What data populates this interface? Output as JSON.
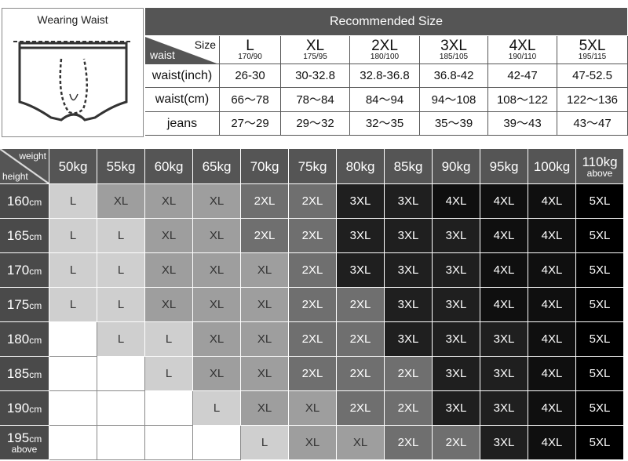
{
  "wearing_waist": "Wearing Waist",
  "recommended": {
    "title": "Recommended Size",
    "size_label": "Size",
    "waist_label": "waist",
    "sizes": [
      {
        "name": "L",
        "sub": "170/90"
      },
      {
        "name": "XL",
        "sub": "175/95"
      },
      {
        "name": "2XL",
        "sub": "180/100"
      },
      {
        "name": "3XL",
        "sub": "185/105"
      },
      {
        "name": "4XL",
        "sub": "190/110"
      },
      {
        "name": "5XL",
        "sub": "195/115"
      }
    ],
    "rows": [
      {
        "label": "waist(inch)",
        "values": [
          "26-30",
          "30-32.8",
          "32.8-36.8",
          "36.8-42",
          "42-47",
          "47-52.5"
        ]
      },
      {
        "label": "waist(cm)",
        "values": [
          "66～78",
          "78～84",
          "84～94",
          "94～108",
          "108～122",
          "122～136"
        ]
      },
      {
        "label": "jeans",
        "values": [
          "27～29",
          "29～32",
          "32～35",
          "35～39",
          "39～43",
          "43～47"
        ]
      }
    ]
  },
  "grid": {
    "weight_label": "weight",
    "height_label": "height",
    "columns": [
      {
        "label": "50kg"
      },
      {
        "label": "55kg"
      },
      {
        "label": "60kg"
      },
      {
        "label": "65kg"
      },
      {
        "label": "70kg"
      },
      {
        "label": "75kg"
      },
      {
        "label": "80kg"
      },
      {
        "label": "85kg"
      },
      {
        "label": "90kg"
      },
      {
        "label": "95kg"
      },
      {
        "label": "100kg"
      },
      {
        "label": "110kg",
        "note": "above"
      }
    ],
    "rows": [
      {
        "height": "160",
        "unit": "cm",
        "cells": [
          "L",
          "XL",
          "XL",
          "XL",
          "2XL",
          "2XL",
          "3XL",
          "3XL",
          "4XL",
          "4XL",
          "4XL",
          "5XL"
        ]
      },
      {
        "height": "165",
        "unit": "cm",
        "cells": [
          "L",
          "L",
          "XL",
          "XL",
          "2XL",
          "2XL",
          "3XL",
          "3XL",
          "3XL",
          "4XL",
          "4XL",
          "5XL"
        ]
      },
      {
        "height": "170",
        "unit": "cm",
        "cells": [
          "L",
          "L",
          "XL",
          "XL",
          "XL",
          "2XL",
          "3XL",
          "3XL",
          "3XL",
          "4XL",
          "4XL",
          "5XL"
        ]
      },
      {
        "height": "175",
        "unit": "cm",
        "cells": [
          "L",
          "L",
          "XL",
          "XL",
          "XL",
          "2XL",
          "2XL",
          "3XL",
          "3XL",
          "4XL",
          "4XL",
          "5XL"
        ]
      },
      {
        "height": "180",
        "unit": "cm",
        "cells": [
          null,
          "L",
          "L",
          "XL",
          "XL",
          "2XL",
          "2XL",
          "3XL",
          "3XL",
          "3XL",
          "4XL",
          "5XL"
        ]
      },
      {
        "height": "185",
        "unit": "cm",
        "cells": [
          null,
          null,
          "L",
          "XL",
          "XL",
          "2XL",
          "2XL",
          "2XL",
          "3XL",
          "3XL",
          "4XL",
          "5XL"
        ]
      },
      {
        "height": "190",
        "unit": "cm",
        "cells": [
          null,
          null,
          null,
          "L",
          "XL",
          "XL",
          "2XL",
          "2XL",
          "3XL",
          "3XL",
          "4XL",
          "5XL"
        ]
      },
      {
        "height": "195",
        "unit": "cm",
        "note": "above",
        "cells": [
          null,
          null,
          null,
          null,
          "L",
          "XL",
          "XL",
          "2XL",
          "2XL",
          "3XL",
          "4XL",
          "5XL"
        ]
      }
    ]
  }
}
